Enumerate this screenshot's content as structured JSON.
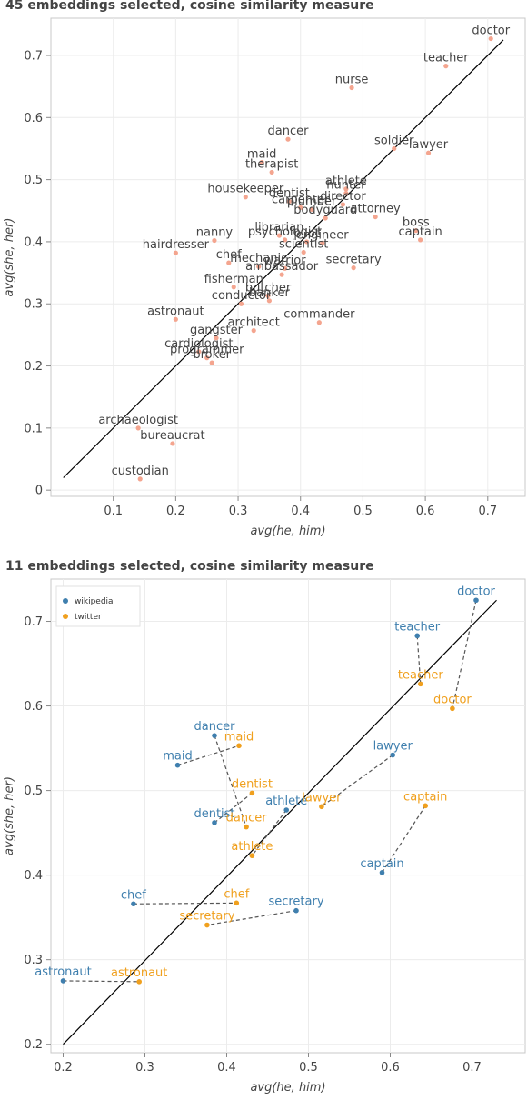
{
  "chart_data": [
    {
      "type": "scatter",
      "title": "45 embeddings selected, cosine similarity measure",
      "xlabel": "avg(he, him)",
      "ylabel": "avg(she, her)",
      "xlim": [
        0.0,
        0.76
      ],
      "ylim": [
        -0.01,
        0.76
      ],
      "xticks": [
        "0.1",
        "0.2",
        "0.3",
        "0.4",
        "0.5",
        "0.6",
        "0.7"
      ],
      "yticks": [
        "0",
        "0.1",
        "0.2",
        "0.3",
        "0.4",
        "0.5",
        "0.6",
        "0.7"
      ],
      "grid": true,
      "point_color": "#f4a58f",
      "diagonal": [
        [
          0.02,
          0.02
        ],
        [
          0.725,
          0.725
        ]
      ],
      "points": [
        {
          "label": "doctor",
          "x": 0.705,
          "y": 0.727
        },
        {
          "label": "teacher",
          "x": 0.633,
          "y": 0.683
        },
        {
          "label": "nurse",
          "x": 0.482,
          "y": 0.648
        },
        {
          "label": "dancer",
          "x": 0.38,
          "y": 0.565
        },
        {
          "label": "soldier",
          "x": 0.55,
          "y": 0.55
        },
        {
          "label": "lawyer",
          "x": 0.605,
          "y": 0.543
        },
        {
          "label": "maid",
          "x": 0.338,
          "y": 0.528
        },
        {
          "label": "therapist",
          "x": 0.354,
          "y": 0.512
        },
        {
          "label": "athlete",
          "x": 0.473,
          "y": 0.485
        },
        {
          "label": "hunter",
          "x": 0.473,
          "y": 0.478
        },
        {
          "label": "housekeeper",
          "x": 0.312,
          "y": 0.472
        },
        {
          "label": "dentist",
          "x": 0.382,
          "y": 0.465
        },
        {
          "label": "director",
          "x": 0.468,
          "y": 0.46
        },
        {
          "label": "carpenter",
          "x": 0.4,
          "y": 0.455
        },
        {
          "label": "plumber",
          "x": 0.418,
          "y": 0.452
        },
        {
          "label": "bodyguard",
          "x": 0.44,
          "y": 0.438
        },
        {
          "label": "attorney",
          "x": 0.52,
          "y": 0.44
        },
        {
          "label": "boss",
          "x": 0.585,
          "y": 0.418
        },
        {
          "label": "librarian",
          "x": 0.366,
          "y": 0.41
        },
        {
          "label": "psychologist",
          "x": 0.375,
          "y": 0.403
        },
        {
          "label": "pilot",
          "x": 0.41,
          "y": 0.4
        },
        {
          "label": "engineer",
          "x": 0.435,
          "y": 0.398
        },
        {
          "label": "captain",
          "x": 0.592,
          "y": 0.403
        },
        {
          "label": "nanny",
          "x": 0.262,
          "y": 0.402
        },
        {
          "label": "hairdresser",
          "x": 0.2,
          "y": 0.382
        },
        {
          "label": "scientist",
          "x": 0.405,
          "y": 0.383
        },
        {
          "label": "chef",
          "x": 0.285,
          "y": 0.366
        },
        {
          "label": "mechanic",
          "x": 0.333,
          "y": 0.36
        },
        {
          "label": "warrior",
          "x": 0.375,
          "y": 0.357
        },
        {
          "label": "secretary",
          "x": 0.485,
          "y": 0.358
        },
        {
          "label": "ambassador",
          "x": 0.37,
          "y": 0.347
        },
        {
          "label": "fisherman",
          "x": 0.293,
          "y": 0.327
        },
        {
          "label": "butcher",
          "x": 0.348,
          "y": 0.313
        },
        {
          "label": "banker",
          "x": 0.35,
          "y": 0.305
        },
        {
          "label": "conductor",
          "x": 0.305,
          "y": 0.3
        },
        {
          "label": "astronaut",
          "x": 0.2,
          "y": 0.275
        },
        {
          "label": "commander",
          "x": 0.43,
          "y": 0.27
        },
        {
          "label": "architect",
          "x": 0.325,
          "y": 0.257
        },
        {
          "label": "gangster",
          "x": 0.265,
          "y": 0.245
        },
        {
          "label": "cardiologist",
          "x": 0.237,
          "y": 0.223
        },
        {
          "label": "programmer",
          "x": 0.25,
          "y": 0.213
        },
        {
          "label": "broker",
          "x": 0.258,
          "y": 0.205
        },
        {
          "label": "archaeologist",
          "x": 0.14,
          "y": 0.1
        },
        {
          "label": "bureaucrat",
          "x": 0.195,
          "y": 0.075
        },
        {
          "label": "custodian",
          "x": 0.143,
          "y": 0.018
        }
      ]
    },
    {
      "type": "scatter",
      "title": "11 embeddings selected, cosine similarity measure",
      "xlabel": "avg(he, him)",
      "ylabel": "avg(she, her)",
      "xlim": [
        0.185,
        0.765
      ],
      "ylim": [
        0.19,
        0.75
      ],
      "xticks": [
        "0.2",
        "0.3",
        "0.4",
        "0.5",
        "0.6",
        "0.7"
      ],
      "yticks": [
        "0.2",
        "0.3",
        "0.4",
        "0.5",
        "0.6",
        "0.7"
      ],
      "grid": true,
      "diagonal": [
        [
          0.2,
          0.2
        ],
        [
          0.73,
          0.725
        ]
      ],
      "legend": {
        "position": "top-left",
        "entries": [
          {
            "name": "wikipedia",
            "color": "#3f7fae"
          },
          {
            "name": "twitter",
            "color": "#f0a01e"
          }
        ]
      },
      "series": [
        {
          "name": "wikipedia",
          "color": "#3f7fae",
          "points": [
            {
              "label": "doctor",
              "x": 0.705,
              "y": 0.725
            },
            {
              "label": "teacher",
              "x": 0.633,
              "y": 0.683
            },
            {
              "label": "dancer",
              "x": 0.385,
              "y": 0.565
            },
            {
              "label": "lawyer",
              "x": 0.603,
              "y": 0.542
            },
            {
              "label": "maid",
              "x": 0.34,
              "y": 0.53
            },
            {
              "label": "athlete",
              "x": 0.473,
              "y": 0.477
            },
            {
              "label": "dentist",
              "x": 0.385,
              "y": 0.462
            },
            {
              "label": "captain",
              "x": 0.59,
              "y": 0.403
            },
            {
              "label": "secretary",
              "x": 0.485,
              "y": 0.358
            },
            {
              "label": "chef",
              "x": 0.286,
              "y": 0.366
            },
            {
              "label": "astronaut",
              "x": 0.2,
              "y": 0.275
            }
          ]
        },
        {
          "name": "twitter",
          "color": "#f0a01e",
          "points": [
            {
              "label": "teacher",
              "x": 0.637,
              "y": 0.626
            },
            {
              "label": "doctor",
              "x": 0.676,
              "y": 0.597
            },
            {
              "label": "maid",
              "x": 0.415,
              "y": 0.553
            },
            {
              "label": "dentist",
              "x": 0.431,
              "y": 0.497
            },
            {
              "label": "lawyer",
              "x": 0.516,
              "y": 0.481
            },
            {
              "label": "captain",
              "x": 0.643,
              "y": 0.482
            },
            {
              "label": "dancer",
              "x": 0.424,
              "y": 0.457
            },
            {
              "label": "athlete",
              "x": 0.431,
              "y": 0.423
            },
            {
              "label": "chef",
              "x": 0.412,
              "y": 0.367
            },
            {
              "label": "secretary",
              "x": 0.376,
              "y": 0.341
            },
            {
              "label": "astronaut",
              "x": 0.293,
              "y": 0.274
            }
          ]
        }
      ],
      "links": [
        {
          "from": [
            "wikipedia",
            "doctor"
          ],
          "to": [
            "twitter",
            "doctor"
          ]
        },
        {
          "from": [
            "wikipedia",
            "teacher"
          ],
          "to": [
            "twitter",
            "teacher"
          ]
        },
        {
          "from": [
            "wikipedia",
            "dancer"
          ],
          "to": [
            "twitter",
            "dancer"
          ]
        },
        {
          "from": [
            "wikipedia",
            "lawyer"
          ],
          "to": [
            "twitter",
            "lawyer"
          ]
        },
        {
          "from": [
            "wikipedia",
            "maid"
          ],
          "to": [
            "twitter",
            "maid"
          ]
        },
        {
          "from": [
            "wikipedia",
            "athlete"
          ],
          "to": [
            "twitter",
            "athlete"
          ]
        },
        {
          "from": [
            "wikipedia",
            "dentist"
          ],
          "to": [
            "twitter",
            "dentist"
          ]
        },
        {
          "from": [
            "wikipedia",
            "captain"
          ],
          "to": [
            "twitter",
            "captain"
          ]
        },
        {
          "from": [
            "wikipedia",
            "secretary"
          ],
          "to": [
            "twitter",
            "secretary"
          ]
        },
        {
          "from": [
            "wikipedia",
            "chef"
          ],
          "to": [
            "twitter",
            "chef"
          ]
        },
        {
          "from": [
            "wikipedia",
            "astronaut"
          ],
          "to": [
            "twitter",
            "astronaut"
          ]
        }
      ]
    }
  ]
}
